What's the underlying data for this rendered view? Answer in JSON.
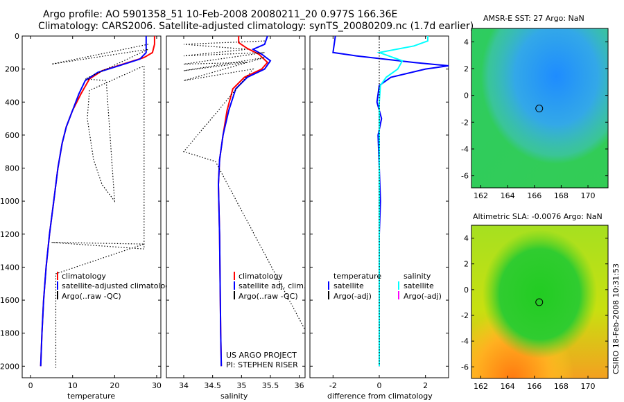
{
  "title_line1": "Argo profile: AO 5901358_51 10-Feb-2008 20080211_20 0.977S 166.36E",
  "title_line2": "Climatology: CARS2006. Satellite-adjusted climatology: synTS_20080209.nc (1.7d earlier)",
  "side_stamp": "CSIRO 18-Feb-2008 10:31:53",
  "colors": {
    "red": "#ff0000",
    "blue": "#0000ff",
    "cyan": "#00ffff",
    "magenta": "#ff00ff",
    "black": "#000000"
  },
  "chart_data": [
    {
      "type": "line",
      "xlabel": "temperature",
      "ylabel": "",
      "xlim": [
        -2,
        31
      ],
      "ylim": [
        2070,
        0
      ],
      "y_reversed": true,
      "xticks": [
        0,
        10,
        20,
        30
      ],
      "yticks": [
        0,
        200,
        400,
        600,
        800,
        1000,
        1200,
        1400,
        1600,
        1800,
        2000
      ],
      "legend": [
        "climatology",
        "satellite-adjusted climatology",
        "Argo(..raw -QC)"
      ],
      "legend_placement": "bottom-right",
      "series": [
        {
          "name": "climatology",
          "color": "red",
          "style": "solid",
          "points": [
            [
              29.5,
              0
            ],
            [
              29.5,
              50
            ],
            [
              29,
              100
            ],
            [
              27,
              130
            ],
            [
              22,
              170
            ],
            [
              17,
              210
            ],
            [
              14,
              260
            ],
            [
              12,
              350
            ],
            [
              10,
              450
            ],
            [
              8.5,
              550
            ],
            [
              7.5,
              650
            ],
            [
              6.5,
              800
            ],
            [
              5.5,
              1000
            ],
            [
              4.5,
              1200
            ],
            [
              3.7,
              1400
            ],
            [
              3.1,
              1600
            ],
            [
              2.7,
              1800
            ],
            [
              2.4,
              2000
            ]
          ]
        },
        {
          "name": "satellite-adjusted climatology",
          "color": "blue",
          "style": "solid",
          "points": [
            [
              27.5,
              0
            ],
            [
              27.5,
              100
            ],
            [
              26,
              140
            ],
            [
              21,
              180
            ],
            [
              16,
              220
            ],
            [
              13,
              270
            ],
            [
              11.5,
              350
            ],
            [
              10,
              450
            ],
            [
              8.5,
              550
            ],
            [
              7.5,
              650
            ],
            [
              6.5,
              800
            ],
            [
              5.5,
              1000
            ],
            [
              4.5,
              1200
            ],
            [
              3.7,
              1400
            ],
            [
              3.1,
              1600
            ],
            [
              2.7,
              1800
            ],
            [
              2.4,
              2000
            ]
          ]
        },
        {
          "name": "Argo(..raw -QC)",
          "color": "black",
          "style": "dotted",
          "points": [
            [
              28,
              50
            ],
            [
              5,
              170
            ],
            [
              28,
              80
            ],
            [
              13,
              260
            ],
            [
              18,
              270
            ],
            [
              20,
              1000
            ],
            [
              17,
              900
            ],
            [
              15,
              750
            ],
            [
              13.5,
              500
            ],
            [
              14,
              330
            ],
            [
              27,
              180
            ],
            [
              27,
              1290
            ],
            [
              5,
              1250
            ],
            [
              27,
              1260
            ],
            [
              6,
              1440
            ],
            [
              6,
              2010
            ]
          ]
        }
      ]
    },
    {
      "type": "line",
      "xlabel": "salinity",
      "ylabel": "",
      "xlim": [
        33.7,
        36.1
      ],
      "ylim": [
        2070,
        0
      ],
      "y_reversed": true,
      "xticks": [
        34,
        34.5,
        35,
        35.5,
        36
      ],
      "legend": [
        "climatology",
        "satellite adj. clim.",
        "Argo(..raw -QC)"
      ],
      "legend_placement": "bottom-right",
      "annotations": [
        "US ARGO PROJECT",
        "PI: STEPHEN RISER"
      ],
      "series": [
        {
          "name": "climatology",
          "color": "red",
          "style": "solid",
          "points": [
            [
              34.95,
              0
            ],
            [
              34.95,
              40
            ],
            [
              35.1,
              75
            ],
            [
              35.3,
              110
            ],
            [
              35.45,
              160
            ],
            [
              35.35,
              200
            ],
            [
              35.05,
              250
            ],
            [
              34.85,
              320
            ],
            [
              34.75,
              450
            ],
            [
              34.68,
              600
            ],
            [
              34.62,
              750
            ],
            [
              34.6,
              900
            ],
            [
              34.62,
              1200
            ],
            [
              34.63,
              1500
            ],
            [
              34.64,
              1800
            ],
            [
              34.65,
              2000
            ]
          ]
        },
        {
          "name": "satellite adj. clim.",
          "color": "blue",
          "style": "solid",
          "points": [
            [
              35.45,
              0
            ],
            [
              35.4,
              50
            ],
            [
              35.2,
              80
            ],
            [
              35.35,
              110
            ],
            [
              35.5,
              150
            ],
            [
              35.4,
              200
            ],
            [
              35.1,
              250
            ],
            [
              34.9,
              320
            ],
            [
              34.78,
              450
            ],
            [
              34.68,
              600
            ],
            [
              34.62,
              750
            ],
            [
              34.6,
              900
            ],
            [
              34.62,
              1200
            ],
            [
              34.63,
              1500
            ],
            [
              34.64,
              1800
            ],
            [
              34.65,
              2000
            ]
          ]
        },
        {
          "name": "Argo(..raw -QC)",
          "color": "black",
          "style": "dotted",
          "points": [
            [
              35.4,
              30
            ],
            [
              34,
              50
            ],
            [
              35.1,
              80
            ],
            [
              34,
              120
            ],
            [
              35.4,
              100
            ],
            [
              34,
              170
            ],
            [
              35.1,
              160
            ],
            [
              34,
              210
            ],
            [
              35.4,
              130
            ],
            [
              34,
              270
            ],
            [
              35.2,
              200
            ],
            [
              34,
              700
            ],
            [
              34.55,
              760
            ],
            [
              36.1,
              1780
            ]
          ]
        }
      ]
    },
    {
      "type": "line",
      "xlabel": "difference from climatology",
      "ylabel": "",
      "xlim": [
        -3,
        3
      ],
      "ylim": [
        2070,
        0
      ],
      "y_reversed": true,
      "xticks": [
        -2,
        0,
        2
      ],
      "legend": [
        "temperature",
        "satellite",
        "Argo(-adj)",
        "salinity",
        "satellite",
        "Argo(-adj)"
      ],
      "legend_placement": "bottom",
      "series": [
        {
          "name": "satellite",
          "color": "blue",
          "style": "solid",
          "points": [
            [
              -1.9,
              0
            ],
            [
              -2,
              100
            ],
            [
              -1,
              120
            ],
            [
              1.5,
              160
            ],
            [
              3,
              180
            ],
            [
              2,
              200
            ],
            [
              0.5,
              250
            ],
            [
              0,
              300
            ],
            [
              -0.1,
              400
            ],
            [
              0.1,
              500
            ],
            [
              -0.05,
              600
            ],
            [
              0,
              800
            ],
            [
              0.05,
              1000
            ],
            [
              0,
              1200
            ],
            [
              0,
              1600
            ],
            [
              0,
              2000
            ]
          ]
        },
        {
          "name": "satellite",
          "color": "cyan",
          "style": "solid",
          "points": [
            [
              2.1,
              0
            ],
            [
              2.1,
              30
            ],
            [
              1.5,
              60
            ],
            [
              0,
              100
            ],
            [
              1,
              150
            ],
            [
              0.8,
              200
            ],
            [
              0.3,
              250
            ],
            [
              0.05,
              300
            ],
            [
              0,
              400
            ],
            [
              0,
              800
            ],
            [
              0,
              2000
            ]
          ]
        },
        {
          "name": "Argo(-adj)",
          "color": "black",
          "style": "dotted",
          "points": [
            [
              0,
              0
            ],
            [
              0,
              2000
            ]
          ]
        }
      ]
    },
    {
      "type": "heatmap",
      "title": "AMSR-E SST: 27 Argo: NaN",
      "xlim": [
        161.3,
        171.5
      ],
      "ylim": [
        -6.9,
        5
      ],
      "xticks": [
        162,
        164,
        166,
        168,
        170
      ],
      "yticks": [
        -6,
        -4,
        -2,
        0,
        2,
        4
      ],
      "marker": {
        "x": 166.36,
        "y": -0.977
      },
      "colormap": "jet"
    },
    {
      "type": "heatmap",
      "title": "Altimetric SLA: -0.0076 Argo: NaN",
      "xlim": [
        161.3,
        171.5
      ],
      "ylim": [
        -6.9,
        5
      ],
      "xticks": [
        162,
        164,
        166,
        168,
        170
      ],
      "yticks": [
        -6,
        -4,
        -2,
        0,
        2,
        4
      ],
      "marker": {
        "x": 166.36,
        "y": -0.977
      },
      "colormap": "jet"
    }
  ]
}
